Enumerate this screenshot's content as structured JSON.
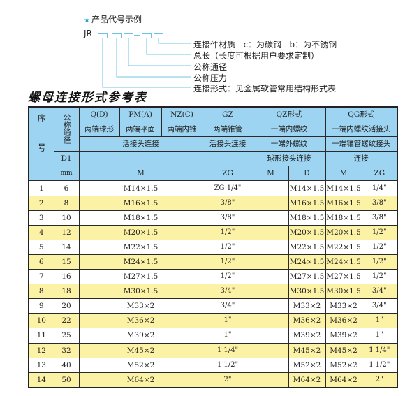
{
  "example": {
    "title": "产品代号示例",
    "star_icon": "star-icon",
    "prefix": "JR",
    "labels": [
      "连接件材质   c：为碳钢   b：为不锈钢",
      "总长（长度可根据用户要求定制）",
      "公称通径",
      "公称压力",
      "连接形式：见金属软管常用结构形式表"
    ]
  },
  "table_title": "螺母连接形式参考表",
  "header": {
    "seq": "序号",
    "nominal": "公称通径",
    "d1": "D1",
    "mm": "mm",
    "q": "Q(D)",
    "pm": "PM(A)",
    "nz": "NZ(C)",
    "gz": "GZ",
    "qz": "QZ形式",
    "qg": "QG形式",
    "q_desc": "两端球形",
    "pm_desc": "两端平面",
    "nz_desc": "两端内锥",
    "gz_desc": "两端锥管",
    "qz_desc1": "一端内螺纹",
    "qg_desc1": "一端内螺纹活接头",
    "union": "活接头连接",
    "gz_union": "活接头连接",
    "qz_desc2": "一端外螺纹",
    "qg_desc2": "一端锥管螺纹接头",
    "qz_desc3": "球形接头连接",
    "qg_desc3": "连接",
    "m": "M",
    "zg": "ZG",
    "qz_m": "M",
    "qz_d": "D",
    "qg_m": "M",
    "qg_zg": "ZG"
  },
  "colors": {
    "header_bg": "#9dd4f1",
    "stripe": "#fcf2a6",
    "accent": "#1aa0d8"
  },
  "rows": [
    {
      "no": "1",
      "d1": "6",
      "m": "M14×1.5",
      "gz": "ZG 1/4\"",
      "qz_m": "",
      "qz_d": "M14×1.5",
      "qg_m": "M14×1.5",
      "qg_zg": "1/4\""
    },
    {
      "no": "2",
      "d1": "8",
      "m": "M16×1.5",
      "gz": "3/8\"",
      "qz_m": "",
      "qz_d": "M16×1.5",
      "qg_m": "M16×1.5",
      "qg_zg": "3/8\""
    },
    {
      "no": "3",
      "d1": "10",
      "m": "M18×1.5",
      "gz": "3/8\"",
      "qz_m": "",
      "qz_d": "M18×1.5",
      "qg_m": "M18×1.5",
      "qg_zg": "3/8\""
    },
    {
      "no": "4",
      "d1": "12",
      "m": "M20×1.5",
      "gz": "1/2\"",
      "qz_m": "",
      "qz_d": "M20×1.5",
      "qg_m": "M20×1.5",
      "qg_zg": "1/2\""
    },
    {
      "no": "5",
      "d1": "14",
      "m": "M22×1.5",
      "gz": "1/2\"",
      "qz_m": "",
      "qz_d": "M22×1.5",
      "qg_m": "M22×1.5",
      "qg_zg": "1/2\""
    },
    {
      "no": "6",
      "d1": "15",
      "m": "M24×1.5",
      "gz": "1/2\"",
      "qz_m": "",
      "qz_d": "M24×1.5",
      "qg_m": "M24×1.5",
      "qg_zg": "1/2\""
    },
    {
      "no": "7",
      "d1": "16",
      "m": "M27×1.5",
      "gz": "1/2\"",
      "qz_m": "",
      "qz_d": "M27×1.5",
      "qg_m": "M27×1.5",
      "qg_zg": "1/2\""
    },
    {
      "no": "8",
      "d1": "18",
      "m": "M30×1.5",
      "gz": "3/4\"",
      "qz_m": "",
      "qz_d": "M30×1.5",
      "qg_m": "M30×1.5",
      "qg_zg": "3/4\""
    },
    {
      "no": "9",
      "d1": "20",
      "m": "M33×2",
      "gz": "3/4\"",
      "qz_m": "",
      "qz_d": "M33×2",
      "qg_m": "M33×2",
      "qg_zg": "3/4\""
    },
    {
      "no": "10",
      "d1": "22",
      "m": "M36×2",
      "gz": "1\"",
      "qz_m": "",
      "qz_d": "M36×2",
      "qg_m": "M36×2",
      "qg_zg": "1\""
    },
    {
      "no": "11",
      "d1": "25",
      "m": "M39×2",
      "gz": "1\"",
      "qz_m": "",
      "qz_d": "M39×2",
      "qg_m": "M39×2",
      "qg_zg": "1\""
    },
    {
      "no": "12",
      "d1": "32",
      "m": "M45×2",
      "gz": "1 1/4\"",
      "qz_m": "",
      "qz_d": "M45×2",
      "qg_m": "M45×2",
      "qg_zg": "1 1/4\""
    },
    {
      "no": "13",
      "d1": "40",
      "m": "M52×2",
      "gz": "1 1/2\"",
      "qz_m": "",
      "qz_d": "M52×2",
      "qg_m": "M52×2",
      "qg_zg": "1 1/2\""
    },
    {
      "no": "14",
      "d1": "50",
      "m": "M64×2",
      "gz": "2\"",
      "qz_m": "",
      "qz_d": "M64×2",
      "qg_m": "M64×2",
      "qg_zg": "2\""
    }
  ]
}
